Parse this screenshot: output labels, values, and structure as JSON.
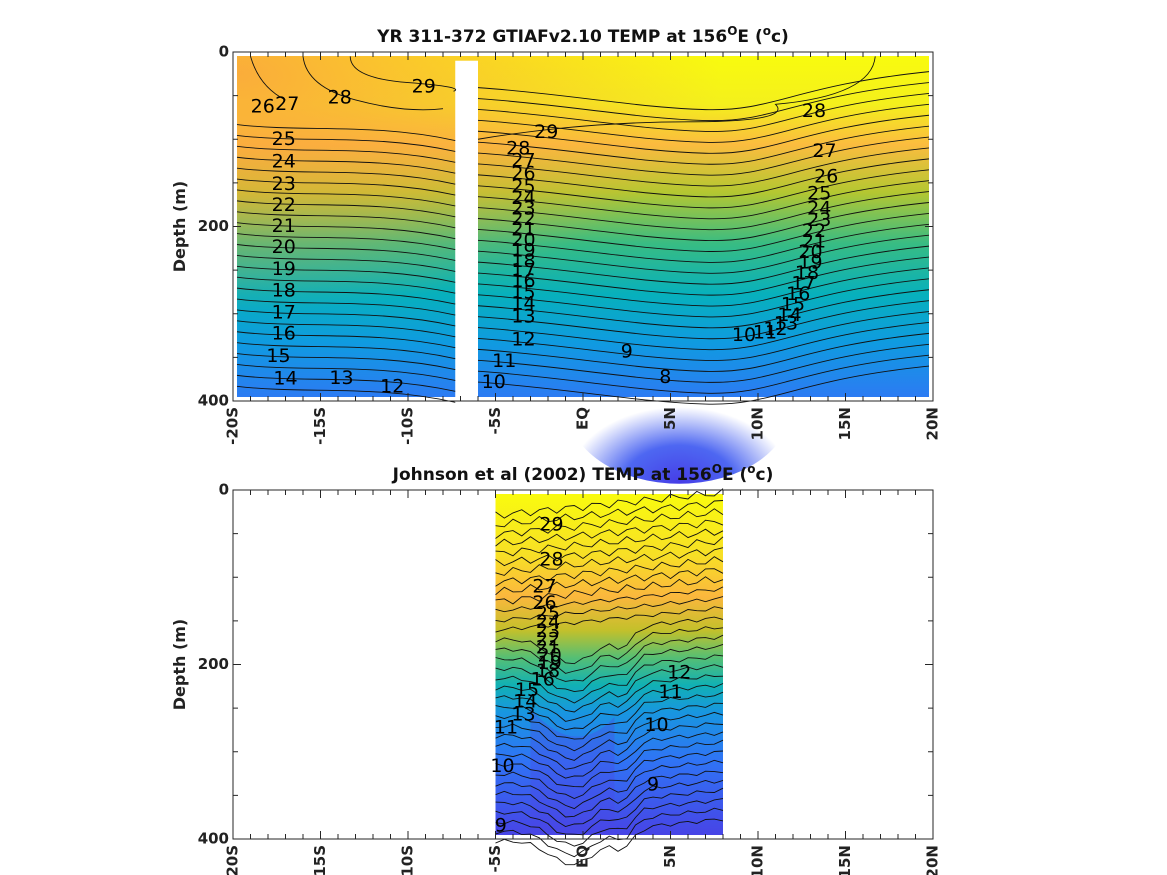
{
  "chart_data": [
    {
      "type": "heatmap",
      "title_main": "YR 311-372 GTIAFv2.10 TEMP at 156",
      "title_deg": "O",
      "title_mid": "E (",
      "title_unit_o": "o",
      "title_end": "c)",
      "ylabel": "Depth (m)",
      "xlim": [
        -20,
        20
      ],
      "ylim": [
        400,
        0
      ],
      "x_ticks": [
        {
          "v": -20,
          "label": "-20S"
        },
        {
          "v": -15,
          "label": "-15S"
        },
        {
          "v": -10,
          "label": "-10S"
        },
        {
          "v": -5,
          "label": "-5S"
        },
        {
          "v": 0,
          "label": "EQ"
        },
        {
          "v": 5,
          "label": "5N"
        },
        {
          "v": 10,
          "label": "10N"
        },
        {
          "v": 15,
          "label": "15N"
        },
        {
          "v": 20,
          "label": "20N"
        }
      ],
      "y_ticks": [
        {
          "v": 0,
          "label": "0"
        },
        {
          "v": 200,
          "label": "200"
        },
        {
          "v": 400,
          "label": "400"
        }
      ],
      "data_gap": {
        "lat": [
          -7.3,
          -6.0
        ],
        "depth_min": 10
      },
      "contour_labels": [
        {
          "lat": -18.3,
          "depth": 63,
          "label": "26"
        },
        {
          "lat": -16.9,
          "depth": 60,
          "label": "27"
        },
        {
          "lat": -13.9,
          "depth": 53,
          "label": "28"
        },
        {
          "lat": -9.1,
          "depth": 40,
          "label": "29"
        },
        {
          "lat": -17.1,
          "depth": 100,
          "label": "25"
        },
        {
          "lat": -17.1,
          "depth": 126,
          "label": "24"
        },
        {
          "lat": -17.1,
          "depth": 152,
          "label": "23"
        },
        {
          "lat": -17.1,
          "depth": 176,
          "label": "22"
        },
        {
          "lat": -17.1,
          "depth": 200,
          "label": "21"
        },
        {
          "lat": -17.1,
          "depth": 224,
          "label": "20"
        },
        {
          "lat": -17.1,
          "depth": 249,
          "label": "19"
        },
        {
          "lat": -17.1,
          "depth": 274,
          "label": "18"
        },
        {
          "lat": -17.1,
          "depth": 299,
          "label": "17"
        },
        {
          "lat": -17.1,
          "depth": 323,
          "label": "16"
        },
        {
          "lat": -17.4,
          "depth": 349,
          "label": "15"
        },
        {
          "lat": -17.0,
          "depth": 375,
          "label": "14"
        },
        {
          "lat": -13.8,
          "depth": 374,
          "label": "13"
        },
        {
          "lat": -10.9,
          "depth": 384,
          "label": "12"
        },
        {
          "lat": -2.1,
          "depth": 92,
          "label": "29"
        },
        {
          "lat": -3.7,
          "depth": 111,
          "label": "28"
        },
        {
          "lat": -3.4,
          "depth": 125,
          "label": "27"
        },
        {
          "lat": -3.4,
          "depth": 140,
          "label": "26"
        },
        {
          "lat": -3.4,
          "depth": 155,
          "label": "25"
        },
        {
          "lat": -3.4,
          "depth": 168,
          "label": "24"
        },
        {
          "lat": -3.4,
          "depth": 180,
          "label": "23"
        },
        {
          "lat": -3.4,
          "depth": 192,
          "label": "22"
        },
        {
          "lat": -3.4,
          "depth": 204,
          "label": "21"
        },
        {
          "lat": -3.4,
          "depth": 216,
          "label": "20"
        },
        {
          "lat": -3.4,
          "depth": 228,
          "label": "19"
        },
        {
          "lat": -3.4,
          "depth": 240,
          "label": "18"
        },
        {
          "lat": -3.4,
          "depth": 251,
          "label": "17"
        },
        {
          "lat": -3.4,
          "depth": 263,
          "label": "16"
        },
        {
          "lat": -3.4,
          "depth": 276,
          "label": "15"
        },
        {
          "lat": -3.4,
          "depth": 289,
          "label": "14"
        },
        {
          "lat": -3.4,
          "depth": 304,
          "label": "13"
        },
        {
          "lat": -3.4,
          "depth": 330,
          "label": "12"
        },
        {
          "lat": -4.5,
          "depth": 355,
          "label": "11"
        },
        {
          "lat": -5.1,
          "depth": 379,
          "label": "10"
        },
        {
          "lat": 2.5,
          "depth": 344,
          "label": "9"
        },
        {
          "lat": 4.7,
          "depth": 373,
          "label": "8"
        },
        {
          "lat": 13.2,
          "depth": 68,
          "label": "28"
        },
        {
          "lat": 13.8,
          "depth": 114,
          "label": "27"
        },
        {
          "lat": 13.9,
          "depth": 143,
          "label": "26"
        },
        {
          "lat": 13.5,
          "depth": 163,
          "label": "25"
        },
        {
          "lat": 13.5,
          "depth": 180,
          "label": "24"
        },
        {
          "lat": 13.5,
          "depth": 193,
          "label": "23"
        },
        {
          "lat": 13.2,
          "depth": 206,
          "label": "22"
        },
        {
          "lat": 13.2,
          "depth": 218,
          "label": "21"
        },
        {
          "lat": 13.0,
          "depth": 230,
          "label": "20"
        },
        {
          "lat": 13.0,
          "depth": 242,
          "label": "19"
        },
        {
          "lat": 12.8,
          "depth": 254,
          "label": "18"
        },
        {
          "lat": 12.6,
          "depth": 266,
          "label": "17"
        },
        {
          "lat": 12.3,
          "depth": 278,
          "label": "16"
        },
        {
          "lat": 12.0,
          "depth": 290,
          "label": "15"
        },
        {
          "lat": 11.8,
          "depth": 302,
          "label": "14"
        },
        {
          "lat": 11.6,
          "depth": 312,
          "label": "13"
        },
        {
          "lat": 11.0,
          "depth": 318,
          "label": "12"
        },
        {
          "lat": 10.4,
          "depth": 322,
          "label": "11"
        },
        {
          "lat": 9.2,
          "depth": 325,
          "label": "10"
        }
      ]
    },
    {
      "type": "heatmap",
      "title_main": "Johnson et al (2002) TEMP at 156",
      "title_deg": "O",
      "title_mid": "E (",
      "title_unit_o": "o",
      "title_end": "c)",
      "ylabel": "Depth (m)",
      "xlim": [
        -20,
        20
      ],
      "ylim": [
        400,
        0
      ],
      "data_extent": {
        "lat": [
          -5,
          8
        ]
      },
      "x_ticks": [
        {
          "v": -20,
          "label": "-20S"
        },
        {
          "v": -15,
          "label": "-15S"
        },
        {
          "v": -10,
          "label": "-10S"
        },
        {
          "v": -5,
          "label": "-5S"
        },
        {
          "v": 0,
          "label": "EQ"
        },
        {
          "v": 5,
          "label": "5N"
        },
        {
          "v": 10,
          "label": "10N"
        },
        {
          "v": 15,
          "label": "15N"
        },
        {
          "v": 20,
          "label": "20N"
        }
      ],
      "y_ticks": [
        {
          "v": 0,
          "label": "0"
        },
        {
          "v": 200,
          "label": "200"
        },
        {
          "v": 400,
          "label": "400"
        }
      ],
      "contour_labels": [
        {
          "lat": -1.8,
          "depth": 40,
          "label": "29"
        },
        {
          "lat": -1.8,
          "depth": 80,
          "label": "28"
        },
        {
          "lat": -2.2,
          "depth": 111,
          "label": "27"
        },
        {
          "lat": -2.2,
          "depth": 130,
          "label": "26"
        },
        {
          "lat": -2.0,
          "depth": 142,
          "label": "25"
        },
        {
          "lat": -2.0,
          "depth": 152,
          "label": "24"
        },
        {
          "lat": -2.0,
          "depth": 162,
          "label": "23"
        },
        {
          "lat": -2.0,
          "depth": 172,
          "label": "22"
        },
        {
          "lat": -2.0,
          "depth": 181,
          "label": "21"
        },
        {
          "lat": -1.9,
          "depth": 190,
          "label": "20"
        },
        {
          "lat": -1.9,
          "depth": 199,
          "label": "19"
        },
        {
          "lat": -2.0,
          "depth": 208,
          "label": "18"
        },
        {
          "lat": -2.3,
          "depth": 218,
          "label": "16"
        },
        {
          "lat": -3.2,
          "depth": 230,
          "label": "15"
        },
        {
          "lat": -3.3,
          "depth": 243,
          "label": "14"
        },
        {
          "lat": -3.4,
          "depth": 258,
          "label": "13"
        },
        {
          "lat": -4.4,
          "depth": 273,
          "label": "11"
        },
        {
          "lat": -4.6,
          "depth": 317,
          "label": "10"
        },
        {
          "lat": -4.7,
          "depth": 385,
          "label": "9"
        },
        {
          "lat": 5.5,
          "depth": 210,
          "label": "12"
        },
        {
          "lat": 5.0,
          "depth": 232,
          "label": "11"
        },
        {
          "lat": 4.2,
          "depth": 270,
          "label": "10"
        },
        {
          "lat": 4.0,
          "depth": 338,
          "label": "9"
        }
      ]
    }
  ]
}
